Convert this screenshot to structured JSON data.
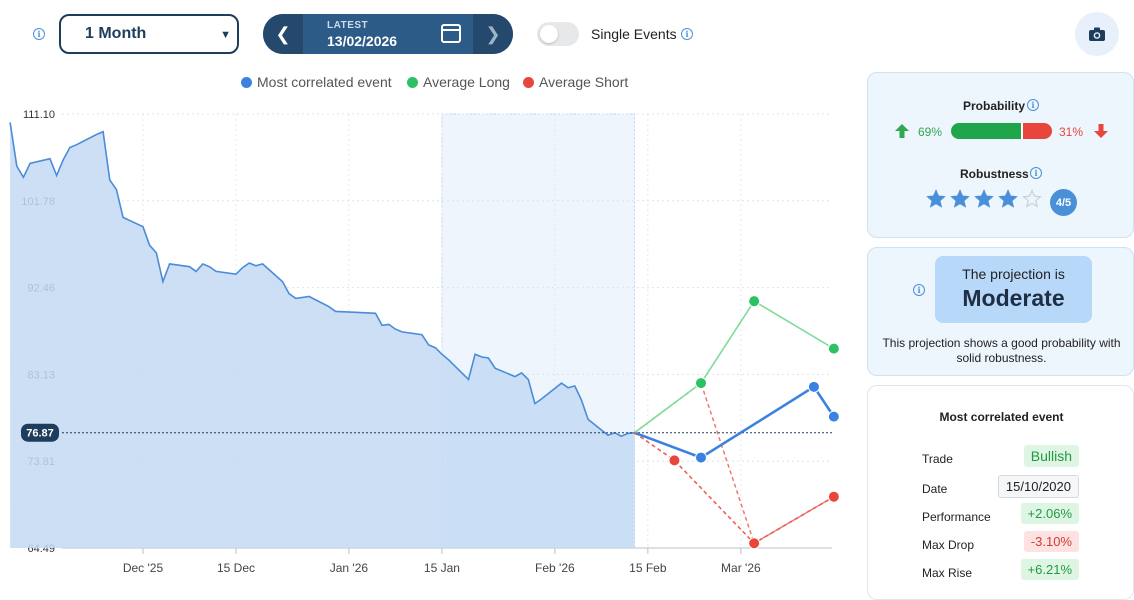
{
  "toolbar": {
    "period": "1 Month",
    "date_label": "LATEST",
    "date_value": "13/02/2026",
    "single_events_label": "Single Events",
    "single_events_on": false
  },
  "legend": [
    {
      "name": "Most correlated event",
      "color": "#3b82e0"
    },
    {
      "name": "Average Long",
      "color": "#2cc162"
    },
    {
      "name": "Average Short",
      "color": "#e8453c"
    }
  ],
  "probability": {
    "title": "Probability",
    "long_pct": "69%",
    "short_pct": "31%",
    "long_value": 69,
    "short_value": 31
  },
  "robustness": {
    "title": "Robustness",
    "score": 4,
    "max": 5,
    "badge": "4/5"
  },
  "projection": {
    "prefix": "The projection is",
    "level": "Moderate",
    "description": "This projection shows a good probability with solid robustness."
  },
  "correlated_event": {
    "title": "Most correlated event",
    "rows": [
      {
        "label": "Trade",
        "value": "Bullish",
        "style": "green"
      },
      {
        "label": "Date",
        "value": "15/10/2020",
        "style": "neutral"
      },
      {
        "label": "Performance",
        "value": "+2.06%",
        "style": "green"
      },
      {
        "label": "Max Drop",
        "value": "-3.10%",
        "style": "red"
      },
      {
        "label": "Max Rise",
        "value": "+6.21%",
        "style": "green"
      }
    ]
  },
  "chart_data": {
    "type": "line",
    "y_ticks": [
      111.1,
      101.78,
      92.46,
      83.13,
      73.81,
      64.49
    ],
    "y_ticks_text": [
      "111.10",
      "101.78",
      "92.46",
      "83.13",
      "73.81",
      "64.49"
    ],
    "ylim": [
      64.49,
      111.1
    ],
    "current_value": 76.87,
    "current_label": "76.87",
    "x_ticks": [
      "Dec '25",
      "15 Dec",
      "Jan '26",
      "15 Jan",
      "Feb '26",
      "15 Feb",
      "Mar '26"
    ],
    "x_tick_dates": [
      "2025-12-01",
      "2025-12-15",
      "2026-01-01",
      "2026-01-15",
      "2026-02-01",
      "2026-02-15",
      "2026-03-01"
    ],
    "grid": true,
    "history": {
      "dates": [
        "2025-11-11",
        "2025-11-12",
        "2025-11-13",
        "2025-11-14",
        "2025-11-17",
        "2025-11-18",
        "2025-11-19",
        "2025-11-20",
        "2025-11-21",
        "2025-11-24",
        "2025-11-25",
        "2025-11-26",
        "2025-11-27",
        "2025-11-28",
        "2025-12-01",
        "2025-12-02",
        "2025-12-03",
        "2025-12-04",
        "2025-12-05",
        "2025-12-08",
        "2025-12-09",
        "2025-12-10",
        "2025-12-11",
        "2025-12-12",
        "2025-12-15",
        "2025-12-16",
        "2025-12-17",
        "2025-12-18",
        "2025-12-19",
        "2025-12-22",
        "2025-12-23",
        "2025-12-24",
        "2025-12-26",
        "2025-12-29",
        "2025-12-30",
        "2026-01-02",
        "2026-01-05",
        "2026-01-06",
        "2026-01-07",
        "2026-01-08",
        "2026-01-09",
        "2026-01-12",
        "2026-01-13",
        "2026-01-14",
        "2026-01-15",
        "2026-01-16",
        "2026-01-19",
        "2026-01-20",
        "2026-01-21",
        "2026-01-22",
        "2026-01-23",
        "2026-01-26",
        "2026-01-27",
        "2026-01-28",
        "2026-01-29",
        "2026-01-30",
        "2026-02-02",
        "2026-02-03",
        "2026-02-04",
        "2026-02-05",
        "2026-02-06",
        "2026-02-09",
        "2026-02-10",
        "2026-02-11",
        "2026-02-12",
        "2026-02-13"
      ],
      "values": [
        110.2,
        105.5,
        104.3,
        105.8,
        106.3,
        104.5,
        106.2,
        107.5,
        107.8,
        108.9,
        109.2,
        104.0,
        103.0,
        100.0,
        99.0,
        97.0,
        96.2,
        93.1,
        95.0,
        94.7,
        94.2,
        95.0,
        94.7,
        94.2,
        93.9,
        94.6,
        95.1,
        94.8,
        95.0,
        93.1,
        91.8,
        91.3,
        91.5,
        90.4,
        89.9,
        89.8,
        89.7,
        88.4,
        88.5,
        88.0,
        87.7,
        87.4,
        86.3,
        86.0,
        85.3,
        84.7,
        82.6,
        85.3,
        85.0,
        84.9,
        83.8,
        82.9,
        83.3,
        82.6,
        80.0,
        80.5,
        82.2,
        81.7,
        81.9,
        80.4,
        78.3,
        76.6,
        76.87,
        76.5,
        76.8,
        76.87
      ]
    },
    "projection_series": [
      {
        "name": "Most correlated event",
        "color": "#3b82e0",
        "dates": [
          "2026-02-13",
          "2026-02-23",
          "2026-03-12",
          "2026-03-15"
        ],
        "values": [
          76.87,
          74.2,
          81.8,
          78.6
        ]
      },
      {
        "name": "Average Long",
        "color": "#2cc162",
        "dates": [
          "2026-02-13",
          "2026-02-23",
          "2026-03-03",
          "2026-03-15"
        ],
        "values": [
          76.87,
          82.2,
          91.0,
          85.9
        ]
      },
      {
        "name": "Average Short",
        "color": "#e8453c",
        "dates": [
          "2026-02-13",
          "2026-02-19",
          "2026-03-03",
          "2026-03-15"
        ],
        "values": [
          76.87,
          73.9,
          65.0,
          70.0
        ]
      }
    ],
    "short_dashed_points": {
      "dates": [
        "2026-02-13",
        "2026-02-23",
        "2026-03-03",
        "2026-03-15"
      ],
      "values": [
        76.87,
        82.2,
        65.0,
        70.0
      ]
    },
    "lookback_window_dates": [
      "2026-01-15",
      "2026-02-13"
    ]
  }
}
